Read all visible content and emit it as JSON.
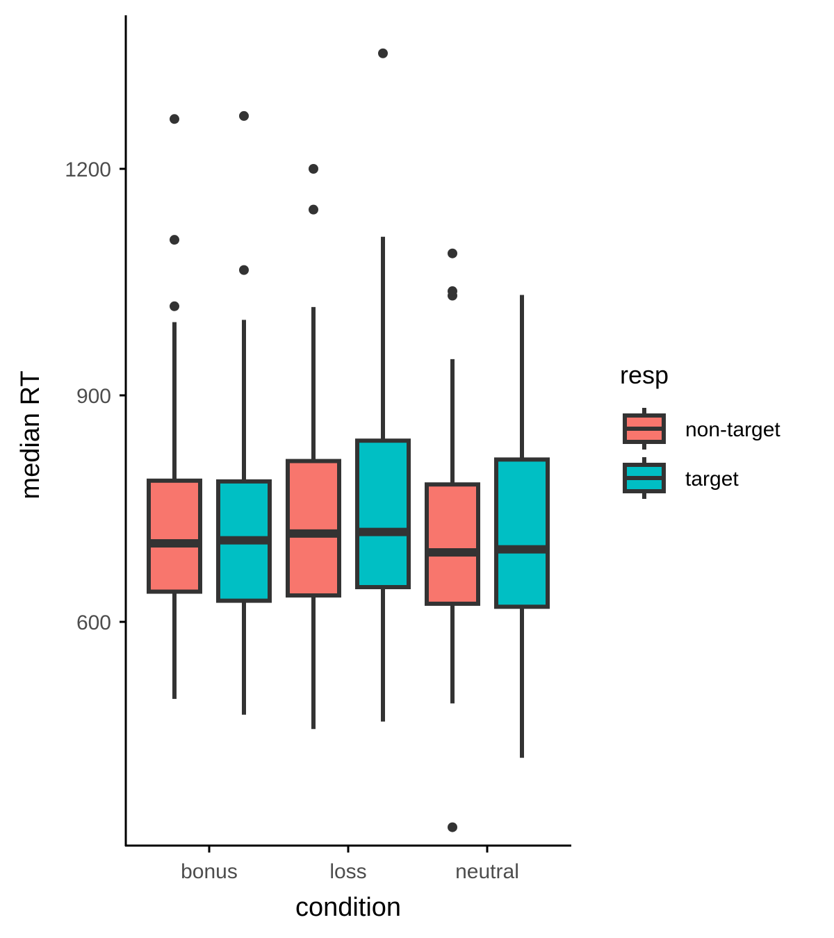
{
  "chart_data": {
    "type": "boxplot",
    "title": "",
    "xlabel": "condition",
    "ylabel": "median RT",
    "categories": [
      "bonus",
      "loss",
      "neutral"
    ],
    "yticks": [
      600,
      900,
      1200
    ],
    "ylim": [
      310,
      1400
    ],
    "grid": false,
    "legend": {
      "title": "resp",
      "position": "right",
      "entries": [
        {
          "label": "non-target",
          "color": "#F8766D"
        },
        {
          "label": "target",
          "color": "#00BFC4"
        }
      ]
    },
    "series": [
      {
        "name": "non-target",
        "color": "#F8766D",
        "boxes": [
          {
            "category": "bonus",
            "whisker_low": 498,
            "q1": 640,
            "median": 704,
            "q3": 787,
            "whisker_high": 997,
            "outliers": [
              1018,
              1106,
              1266
            ]
          },
          {
            "category": "loss",
            "whisker_low": 458,
            "q1": 635,
            "median": 717,
            "q3": 813,
            "whisker_high": 1017,
            "outliers": [
              1146,
              1200
            ]
          },
          {
            "category": "neutral",
            "whisker_low": 492,
            "q1": 624,
            "median": 692,
            "q3": 782,
            "whisker_high": 948,
            "outliers": [
              328,
              1032,
              1038,
              1088
            ]
          }
        ]
      },
      {
        "name": "target",
        "color": "#00BFC4",
        "boxes": [
          {
            "category": "bonus",
            "whisker_low": 477,
            "q1": 628,
            "median": 708,
            "q3": 786,
            "whisker_high": 1000,
            "outliers": [
              1066,
              1270
            ]
          },
          {
            "category": "loss",
            "whisker_low": 468,
            "q1": 646,
            "median": 719,
            "q3": 840,
            "whisker_high": 1110,
            "outliers": [
              1353
            ]
          },
          {
            "category": "neutral",
            "whisker_low": 420,
            "q1": 620,
            "median": 696,
            "q3": 815,
            "whisker_high": 1033,
            "outliers": []
          }
        ]
      }
    ]
  }
}
